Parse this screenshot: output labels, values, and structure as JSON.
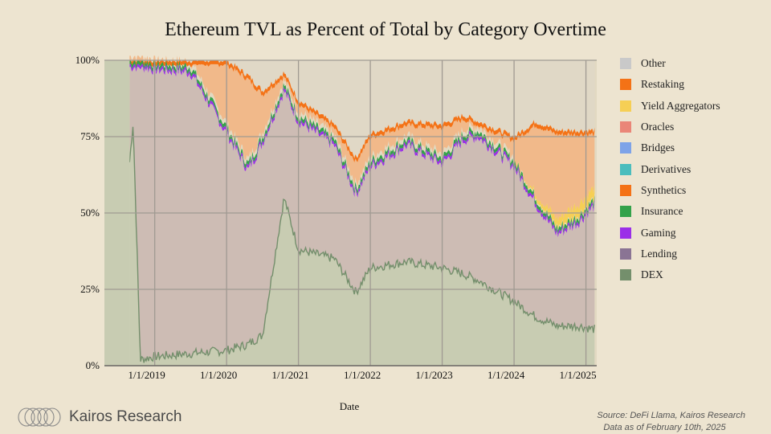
{
  "chart_data": {
    "type": "area",
    "stacked": true,
    "normalized": true,
    "title": "Ethereum TVL as Percent of Total by Category Overtime",
    "xlabel": "Date",
    "ylabel": "",
    "x_ticks": [
      "1/1/2019",
      "1/1/2020",
      "1/1/2021",
      "1/1/2022",
      "1/1/2023",
      "1/1/2024",
      "1/1/2025"
    ],
    "y_ticks": [
      "0%",
      "25%",
      "50%",
      "75%",
      "100%"
    ],
    "ylim": [
      0,
      100
    ],
    "xlim": [
      2018.3,
      2025.15
    ],
    "grid": true,
    "legend_position": "right",
    "legend": [
      "Other",
      "Restaking",
      "Yield Aggregators",
      "Oracles",
      "Bridges",
      "Derivatives",
      "Synthetics",
      "Insurance",
      "Gaming",
      "Lending",
      "DEX"
    ],
    "series_colors": {
      "Other": "#c9c9c9",
      "Restaking": "#f47216",
      "Yield Aggregators": "#f6cf55",
      "Oracles": "#ea8678",
      "Bridges": "#7ea3e8",
      "Derivatives": "#4bbdbd",
      "Synthetics": "#f47216",
      "Insurance": "#33a24a",
      "Gaming": "#9b2fe8",
      "Lending": "#8a7494",
      "DEX": "#748f6c"
    },
    "series_approx_cumulative_top_percent": {
      "x": [
        2018.4,
        2018.7,
        2018.8,
        2019.0,
        2019.5,
        2020.0,
        2020.3,
        2020.5,
        2020.8,
        2021.0,
        2021.5,
        2021.8,
        2022.0,
        2022.5,
        2023.0,
        2023.3,
        2023.5,
        2024.0,
        2024.3,
        2024.6,
        2024.9,
        2025.1
      ],
      "DEX": [
        0,
        80,
        2,
        3,
        4,
        5,
        7,
        10,
        55,
        38,
        35,
        24,
        32,
        34,
        32,
        30,
        28,
        21,
        16,
        13,
        13,
        12
      ],
      "Lending": [
        100,
        100,
        100,
        99,
        98,
        78,
        66,
        75,
        92,
        82,
        74,
        58,
        67,
        74,
        68,
        76,
        77,
        67,
        55,
        45,
        49,
        54
      ],
      "Restaking_top": [
        100,
        100,
        100,
        100,
        100,
        100,
        95,
        90,
        96,
        87,
        79,
        68,
        76,
        80,
        79,
        82,
        80,
        75,
        80,
        77,
        77,
        77
      ]
    }
  },
  "legend_labels": {
    "other": "Other",
    "restaking": "Restaking",
    "yield": "Yield Aggregators",
    "oracles": "Oracles",
    "bridges": "Bridges",
    "derivatives": "Derivatives",
    "synthetics": "Synthetics",
    "insurance": "Insurance",
    "gaming": "Gaming",
    "lending": "Lending",
    "dex": "DEX"
  },
  "footer": {
    "brand": "Kairos Research",
    "source_line1": "Source: DeFi Llama, Kairos Research",
    "source_line2": "Data as of February 10th, 2025"
  }
}
